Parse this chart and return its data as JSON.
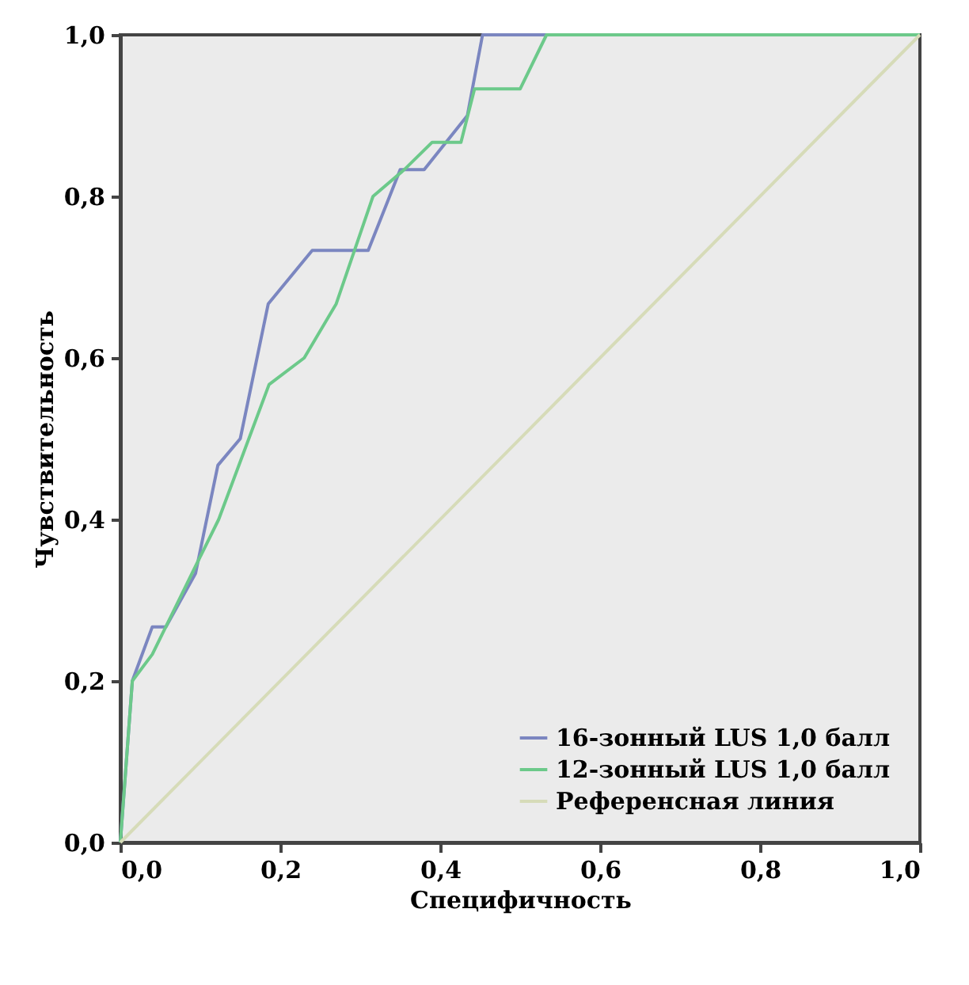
{
  "chart_data": {
    "type": "line",
    "xlabel": "Специфичность",
    "ylabel": "Чувствительность",
    "xlim": [
      0,
      1
    ],
    "ylim": [
      0,
      1
    ],
    "xticks": [
      {
        "value": 0,
        "label": "0,0"
      },
      {
        "value": 0.2,
        "label": "0,2"
      },
      {
        "value": 0.4,
        "label": "0,4"
      },
      {
        "value": 0.6,
        "label": "0,6"
      },
      {
        "value": 0.8,
        "label": "0,8"
      },
      {
        "value": 1,
        "label": "1,0"
      }
    ],
    "yticks": [
      {
        "value": 0,
        "label": "0,0"
      },
      {
        "value": 0.2,
        "label": "0,2"
      },
      {
        "value": 0.4,
        "label": "0,4"
      },
      {
        "value": 0.6,
        "label": "0,6"
      },
      {
        "value": 0.8,
        "label": "0,8"
      },
      {
        "value": 1,
        "label": "1,0"
      }
    ],
    "grid": false,
    "legend": "bottom right",
    "marker": "none",
    "line_style": "solid",
    "series": [
      {
        "name": "16-зонный LUS 1,0 балл",
        "color": "#7b86c0",
        "x": [
          0,
          0.015,
          0.04,
          0.057,
          0.094,
          0.122,
          0.15,
          0.185,
          0.24,
          0.31,
          0.35,
          0.38,
          0.434,
          0.453,
          1
        ],
        "values": [
          0,
          0.2,
          0.267,
          0.267,
          0.333,
          0.467,
          0.5,
          0.667,
          0.733,
          0.733,
          0.833,
          0.833,
          0.9,
          1,
          1
        ]
      },
      {
        "name": "12-зонный LUS 1,0 балл",
        "color": "#6cc98a",
        "x": [
          0,
          0.015,
          0.04,
          0.098,
          0.123,
          0.186,
          0.23,
          0.27,
          0.316,
          0.355,
          0.39,
          0.426,
          0.443,
          0.5,
          0.533,
          1
        ],
        "values": [
          0,
          0.2,
          0.233,
          0.35,
          0.4,
          0.567,
          0.6,
          0.667,
          0.8,
          0.833,
          0.867,
          0.867,
          0.933,
          0.933,
          1,
          1
        ]
      },
      {
        "name": "Референсная линия",
        "color": "#d6dbb8",
        "x": [
          0,
          1
        ],
        "values": [
          0,
          1
        ]
      }
    ]
  }
}
